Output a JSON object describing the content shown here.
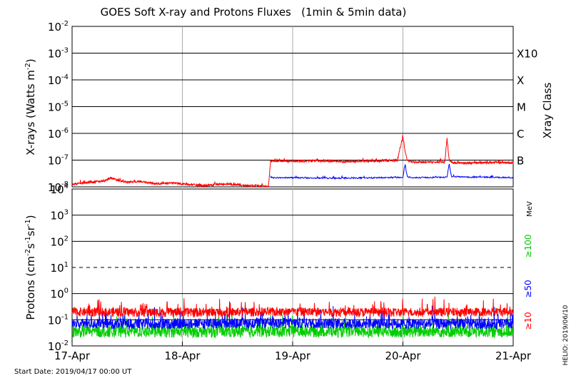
{
  "chart_data": [
    {
      "type": "line",
      "title": "GOES Soft X-ray and Protons Fluxes   (1min & 5min data)",
      "ylabel": "X-rays (Watts m",
      "ylabel_sup": "-2",
      "ylabel_close": ")",
      "y_scale": "log",
      "ylim": [
        1e-08,
        0.01
      ],
      "y_ticks": [
        {
          "base": "10",
          "exp": "-8",
          "value": 1e-08
        },
        {
          "base": "10",
          "exp": "-7",
          "value": 1e-07
        },
        {
          "base": "10",
          "exp": "-6",
          "value": 1e-06
        },
        {
          "base": "10",
          "exp": "-5",
          "value": 1e-05
        },
        {
          "base": "10",
          "exp": "-4",
          "value": 0.0001
        },
        {
          "base": "10",
          "exp": "-3",
          "value": 0.001
        },
        {
          "base": "10",
          "exp": "-2",
          "value": 0.01
        }
      ],
      "right_axis_title": "Xray Class",
      "class_labels": [
        {
          "label": "B",
          "value": 1e-07
        },
        {
          "label": "C",
          "value": 1e-06
        },
        {
          "label": "M",
          "value": 1e-05
        },
        {
          "label": "X",
          "value": 0.0001
        },
        {
          "label": "X10",
          "value": 0.001
        }
      ],
      "grid": true,
      "series": [
        {
          "color": "#ff0000",
          "x": [
            0,
            0.1,
            0.2,
            0.3,
            0.35,
            0.4,
            0.5,
            0.6,
            0.7,
            0.8,
            0.9,
            1.0,
            1.1,
            1.2,
            1.3,
            1.4,
            1.5,
            1.6,
            1.7,
            1.78,
            1.8,
            1.82,
            1.9,
            2.0,
            2.2,
            2.4,
            2.6,
            2.8,
            2.95,
            3.0,
            3.02,
            3.04,
            3.06,
            3.1,
            3.2,
            3.3,
            3.38,
            3.4,
            3.42,
            3.45,
            3.5,
            3.6,
            3.7,
            3.8,
            3.9,
            4.0
          ],
          "y": [
            1.2e-08,
            1.4e-08,
            1.5e-08,
            1.7e-08,
            2.2e-08,
            1.8e-08,
            1.5e-08,
            1.6e-08,
            1.4e-08,
            1.3e-08,
            1.4e-08,
            1.3e-08,
            1.2e-08,
            1.1e-08,
            1.2e-08,
            1.3e-08,
            1.2e-08,
            1.1e-08,
            1.1e-08,
            1e-08,
            9e-08,
            9e-08,
            9.2e-08,
            9e-08,
            9.5e-08,
            8.8e-08,
            9e-08,
            9.3e-08,
            1e-07,
            7.5e-07,
            2e-07,
            1e-07,
            9e-08,
            8.5e-08,
            8.3e-08,
            8.5e-08,
            8.5e-08,
            6.5e-07,
            1e-07,
            8e-08,
            8e-08,
            7.8e-08,
            8e-08,
            8.2e-08,
            8e-08,
            8e-08
          ]
        },
        {
          "color": "#0000ff",
          "x": [
            1.8,
            1.82,
            2.0,
            2.4,
            2.8,
            3.0,
            3.02,
            3.04,
            3.1,
            3.4,
            3.42,
            3.44,
            3.6,
            3.8,
            4.0
          ],
          "y": [
            2.2e-08,
            2.2e-08,
            2.2e-08,
            2.1e-08,
            2.2e-08,
            2.3e-08,
            7e-08,
            2.4e-08,
            2.2e-08,
            2.3e-08,
            7e-08,
            2.4e-08,
            2.3e-08,
            2.3e-08,
            2.2e-08
          ]
        }
      ]
    },
    {
      "type": "line",
      "ylabel": "Protons (cm",
      "ylabel_sup1": "-2",
      "ylabel_mid1": "s",
      "ylabel_sup2": "-1",
      "ylabel_mid2": "sr",
      "ylabel_sup3": "-1",
      "ylabel_close": ")",
      "y_scale": "log",
      "ylim": [
        0.01,
        10000
      ],
      "y_ticks": [
        {
          "base": "10",
          "exp": "-2",
          "value": 0.01
        },
        {
          "base": "10",
          "exp": "-1",
          "value": 0.1
        },
        {
          "base": "10",
          "exp": "0",
          "value": 1
        },
        {
          "base": "10",
          "exp": "1",
          "value": 10
        },
        {
          "base": "10",
          "exp": "2",
          "value": 100
        },
        {
          "base": "10",
          "exp": "3",
          "value": 1000
        },
        {
          "base": "10",
          "exp": "4",
          "value": 10000
        }
      ],
      "threshold_value": 10,
      "right_unit": "MeV",
      "legend": [
        {
          "name": "≥100",
          "color": "#00cc00"
        },
        {
          "name": "≥50",
          "color": "#0000ff"
        },
        {
          "name": "≥10",
          "color": "#ff0000"
        }
      ],
      "series": [
        {
          "name": "≥10",
          "color": "#ff0000",
          "x": [
            0,
            1,
            2,
            3,
            4
          ],
          "y": [
            0.2,
            0.19,
            0.2,
            0.19,
            0.2
          ]
        },
        {
          "name": "≥50",
          "color": "#0000ff",
          "x": [
            0,
            1,
            2,
            3,
            4
          ],
          "y": [
            0.07,
            0.07,
            0.075,
            0.07,
            0.07
          ]
        },
        {
          "name": "≥100",
          "color": "#00cc00",
          "x": [
            0,
            1,
            2,
            3,
            4
          ],
          "y": [
            0.035,
            0.035,
            0.036,
            0.035,
            0.035
          ]
        }
      ]
    }
  ],
  "x_axis": {
    "xlim": [
      0,
      4
    ],
    "ticks": [
      {
        "label": "17-Apr",
        "value": 0
      },
      {
        "label": "18-Apr",
        "value": 1
      },
      {
        "label": "19-Apr",
        "value": 2
      },
      {
        "label": "20-Apr",
        "value": 3
      },
      {
        "label": "21-Apr",
        "value": 4
      }
    ]
  },
  "footer": {
    "start_date": "Start Date: 2019/04/17 00:00 UT",
    "credit": "HELIO: 2019/06/10"
  }
}
